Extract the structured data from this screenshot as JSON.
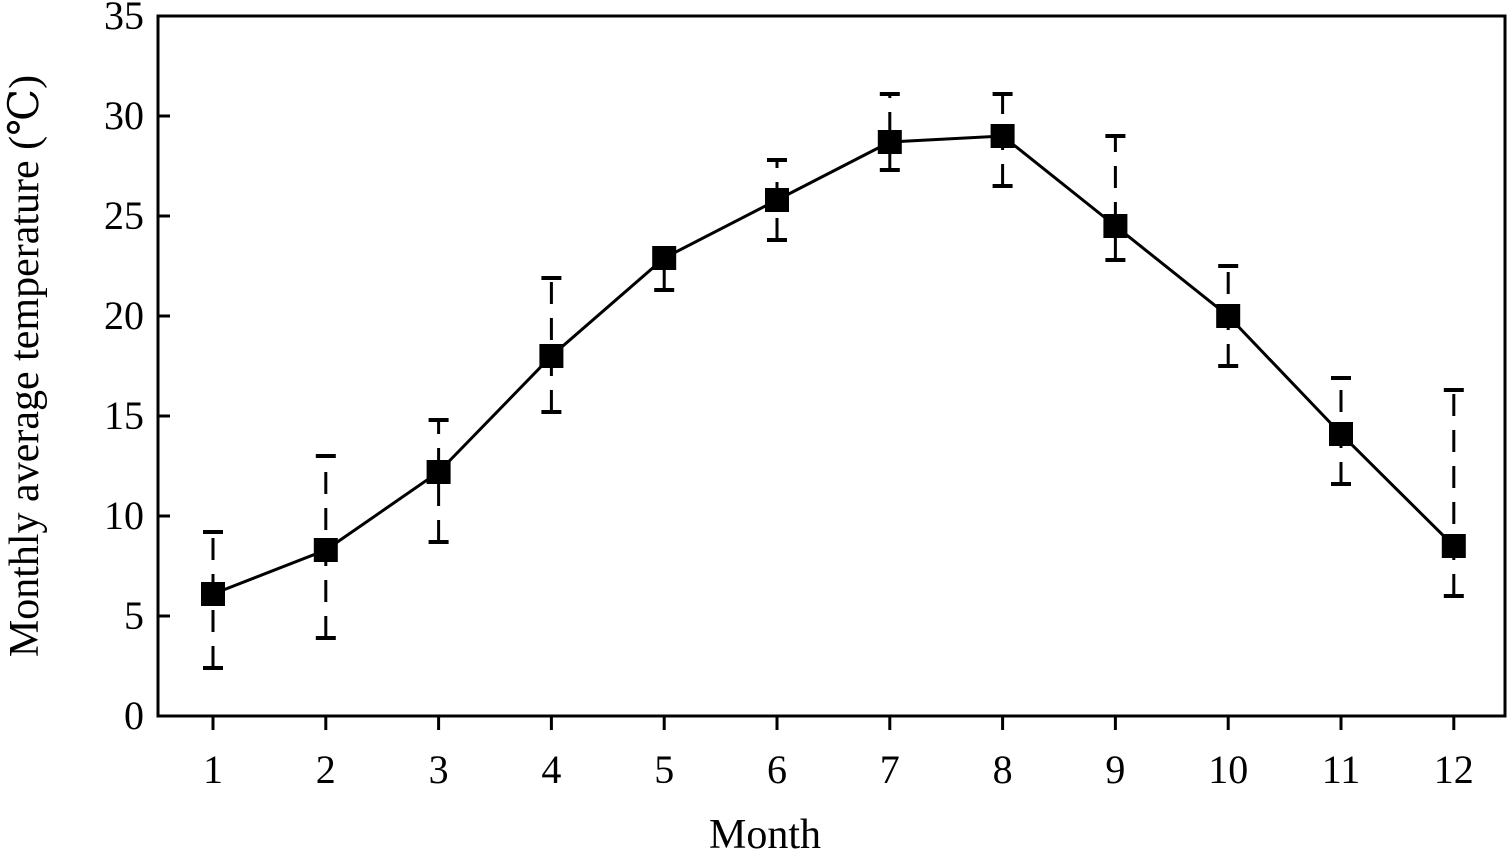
{
  "chart_data": {
    "type": "line",
    "xlabel": "Month",
    "ylabel": "Monthly average temperature (℃)",
    "x": [
      1,
      2,
      3,
      4,
      5,
      6,
      7,
      8,
      9,
      10,
      11,
      12
    ],
    "xticks": [
      "1",
      "2",
      "3",
      "4",
      "5",
      "6",
      "7",
      "8",
      "9",
      "10",
      "11",
      "12"
    ],
    "yticks": [
      "0",
      "5",
      "10",
      "15",
      "20",
      "25",
      "30",
      "35"
    ],
    "ylim": [
      0,
      35
    ],
    "grid": false,
    "series": [
      {
        "values": [
          6.1,
          8.3,
          12.2,
          18.0,
          22.9,
          25.8,
          28.7,
          29.0,
          24.5,
          20.0,
          14.1,
          8.5
        ],
        "error_low": [
          2.4,
          3.9,
          8.7,
          15.2,
          21.3,
          23.8,
          27.3,
          26.5,
          22.8,
          17.5,
          11.6,
          6.0
        ],
        "error_high": [
          9.2,
          13.0,
          14.8,
          21.9,
          22.9,
          27.8,
          31.1,
          31.1,
          29.0,
          22.5,
          16.9,
          16.3
        ]
      }
    ],
    "colors": {
      "line": "#000000",
      "marker": "#000000",
      "errorbar": "#000000"
    },
    "marker": "square",
    "errorbar_style": "dashed"
  }
}
